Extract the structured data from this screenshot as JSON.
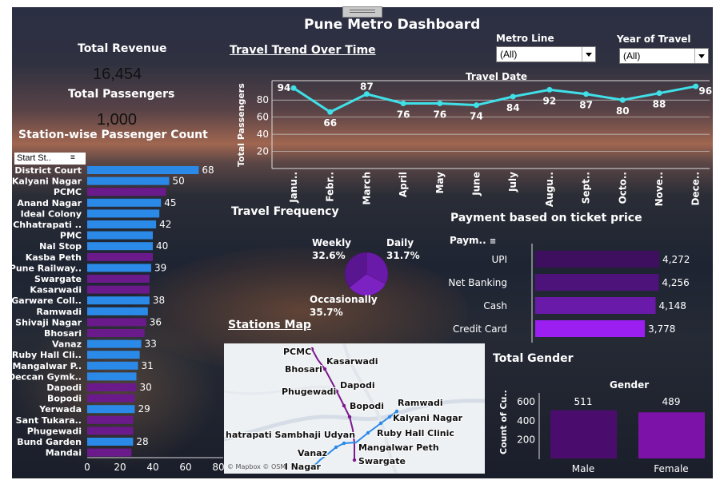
{
  "title": "Pune Metro Dashboard",
  "kpis": {
    "revenue_label": "Total Revenue",
    "revenue_value": "16,454",
    "passengers_label": "Total Passengers",
    "passengers_value": "1,000"
  },
  "filters": {
    "metro_line_label": "Metro Line",
    "metro_line_value": "(All)",
    "year_label": "Year of Travel",
    "year_value": "(All)"
  },
  "colors": {
    "blue": "#2b8ae8",
    "purple": "#6b1a8c",
    "trend": "#40e0e8",
    "pay1": "#3d0f5e",
    "pay2": "#4e137a",
    "pay3": "#6a1aa8",
    "pay4": "#9a1ff0",
    "male": "#4a0d6e",
    "female": "#7c12a8"
  },
  "chart_data": [
    {
      "type": "bar",
      "title": "Station-wise Passenger Count",
      "sort_header": "Start St..",
      "orientation": "horizontal",
      "categories": [
        "District Court",
        "Kalyani Nagar",
        "PCMC",
        "Anand Nagar",
        "Ideal Colony",
        "Chhatrapati ..",
        "PMC",
        "Nal Stop",
        "Kasba Peth",
        "Pune Railway..",
        "Swargate",
        "Kasarwadi",
        "Garware Coll..",
        "Ramwadi",
        "Shivaji Nagar",
        "Bhosari",
        "Vanaz",
        "Ruby Hall Cli..",
        "Mangalwar P..",
        "Deccan Gymk..",
        "Dapodi",
        "Bopodi",
        "Yerwada",
        "Sant Tukara..",
        "Phugewadi",
        "Bund Garden",
        "Mandai"
      ],
      "values": [
        68,
        50,
        48,
        45,
        44,
        42,
        40,
        40,
        40,
        39,
        38,
        38,
        38,
        37,
        36,
        35,
        33,
        32,
        31,
        30,
        30,
        29,
        29,
        28,
        28,
        28,
        27
      ],
      "labels": [
        "68",
        "50",
        "",
        "45",
        "",
        "42",
        "",
        "40",
        "",
        "39",
        "",
        "",
        "38",
        "",
        "36",
        "",
        "33",
        "",
        "31",
        "",
        "30",
        "",
        "29",
        "",
        "",
        "28",
        ""
      ],
      "colors": [
        "blue",
        "blue",
        "purple",
        "blue",
        "blue",
        "blue",
        "blue",
        "blue",
        "purple",
        "blue",
        "purple",
        "purple",
        "blue",
        "blue",
        "purple",
        "purple",
        "blue",
        "blue",
        "blue",
        "blue",
        "purple",
        "purple",
        "blue",
        "purple",
        "purple",
        "blue",
        "purple"
      ],
      "xticks": [
        "0",
        "20",
        "40",
        "60",
        "80"
      ],
      "xlim": [
        0,
        80
      ]
    },
    {
      "type": "line",
      "title": "Travel Trend Over Time",
      "subtitle": "Travel Date",
      "ylabel": "Total Passengers",
      "categories": [
        "Janu..",
        "Febr..",
        "March",
        "April",
        "May",
        "June",
        "July",
        "Augu..",
        "Sept..",
        "Octo..",
        "Nove..",
        "Dece.."
      ],
      "values": [
        94,
        66,
        87,
        76,
        76,
        74,
        84,
        92,
        87,
        80,
        88,
        96
      ],
      "yticks": [
        "20",
        "40",
        "60",
        "80"
      ],
      "ylim": [
        0,
        100
      ]
    },
    {
      "type": "pie",
      "title": "Travel Frequency",
      "slices": [
        {
          "name": "Weekly",
          "pct": "32.6%",
          "value": 32.6
        },
        {
          "name": "Daily",
          "pct": "31.7%",
          "value": 31.7
        },
        {
          "name": "Occasionally",
          "pct": "35.7%",
          "value": 35.7
        }
      ]
    },
    {
      "type": "bar",
      "title": "Payment based on ticket price",
      "sort_header": "Paym..",
      "orientation": "horizontal",
      "categories": [
        "UPI",
        "Net Banking",
        "Cash",
        "Credit Card"
      ],
      "values": [
        4272,
        4256,
        4148,
        3778
      ],
      "labels": [
        "4,272",
        "4,256",
        "4,148",
        "3,778"
      ]
    },
    {
      "type": "bar",
      "title": "Total Gender",
      "subtitle": "Gender",
      "ylabel": "Count of Cu..",
      "categories": [
        "Male",
        "Female"
      ],
      "values": [
        511,
        489
      ],
      "yticks": [
        "200",
        "400",
        "600"
      ],
      "ylim": [
        0,
        600
      ]
    }
  ],
  "map": {
    "title": "Stations Map",
    "attribution": "© Mapbox © OSM",
    "labels": [
      "PCMC",
      "Kasarwadi",
      "Bhosari",
      "Dapodi",
      "Phugewadi",
      "Bopodi",
      "Ramwadi",
      "Kalyani Nagar",
      "Ruby Hall Clinic",
      "hatrapati Sambhaji Udyan",
      "Mangalwar Peth",
      "Vanaz",
      "Swargate",
      "l Nagar"
    ]
  }
}
